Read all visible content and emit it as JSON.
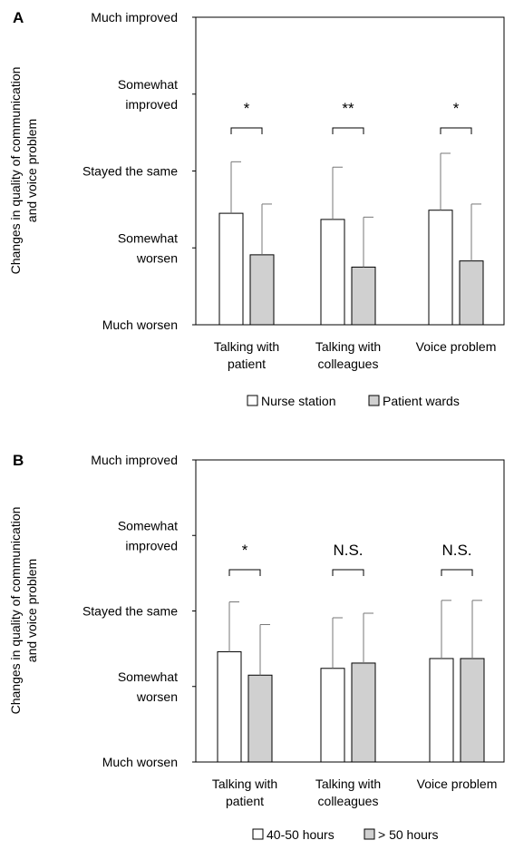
{
  "chart_data": [
    {
      "panel": "A",
      "type": "bar",
      "ylabel": "Changes in quality of communication and voice problem",
      "ylabel_lines": [
        "Changes in quality of communication",
        "and voice problem"
      ],
      "yticks": [
        {
          "value": 1,
          "lines": [
            "Much worsen"
          ]
        },
        {
          "value": 2,
          "lines": [
            "Somewhat",
            "worsen"
          ]
        },
        {
          "value": 3,
          "lines": [
            "Stayed the same"
          ]
        },
        {
          "value": 4,
          "lines": [
            "Somewhat",
            "improved"
          ]
        },
        {
          "value": 5,
          "lines": [
            "Much improved"
          ]
        }
      ],
      "ylim": [
        1,
        5
      ],
      "categories": [
        {
          "lines": [
            "Talking with",
            "patient"
          ]
        },
        {
          "lines": [
            "Talking with",
            "colleagues"
          ]
        },
        {
          "lines": [
            "Voice problem"
          ]
        }
      ],
      "series": [
        {
          "name": "Nurse station",
          "color": "#ffffff",
          "values": [
            2.45,
            2.37,
            2.49
          ],
          "errors": [
            0.67,
            0.68,
            0.74
          ]
        },
        {
          "name": "Patient wards",
          "color": "#d0d0d0",
          "values": [
            1.91,
            1.75,
            1.83
          ],
          "errors": [
            0.66,
            0.65,
            0.74
          ]
        }
      ],
      "significance": [
        "*",
        "**",
        "*"
      ],
      "legend_position": "bottom"
    },
    {
      "panel": "B",
      "type": "bar",
      "ylabel": "Changes in quality of communication and voice problem",
      "ylabel_lines": [
        "Changes in quality of communication",
        "and voice problem"
      ],
      "yticks": [
        {
          "value": 1,
          "lines": [
            "Much worsen"
          ]
        },
        {
          "value": 2,
          "lines": [
            "Somewhat",
            "worsen"
          ]
        },
        {
          "value": 3,
          "lines": [
            "Stayed the  same"
          ]
        },
        {
          "value": 4,
          "lines": [
            "Somewhat",
            "improved"
          ]
        },
        {
          "value": 5,
          "lines": [
            "Much improved"
          ]
        }
      ],
      "ylim": [
        1,
        5
      ],
      "categories": [
        {
          "lines": [
            "Talking with",
            "patient"
          ]
        },
        {
          "lines": [
            "Talking with",
            "colleagues"
          ]
        },
        {
          "lines": [
            "Voice problem"
          ]
        }
      ],
      "series": [
        {
          "name": "40-50 hours",
          "color": "#ffffff",
          "values": [
            2.46,
            2.24,
            2.37
          ],
          "errors": [
            0.66,
            0.67,
            0.77
          ]
        },
        {
          "name": "> 50 hours",
          "color": "#d0d0d0",
          "values": [
            2.15,
            2.31,
            2.37
          ],
          "errors": [
            0.67,
            0.66,
            0.77
          ]
        }
      ],
      "significance": [
        "*",
        "N.S.",
        "N.S."
      ],
      "legend_position": "bottom"
    }
  ]
}
